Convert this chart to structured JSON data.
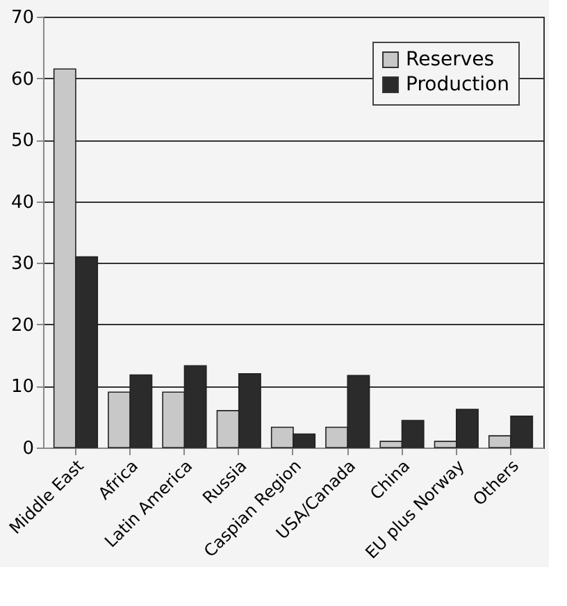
{
  "chart_data": {
    "type": "bar",
    "categories": [
      "Middle East",
      "Africa",
      "Latin America",
      "Russia",
      "Caspian Region",
      "USA/Canada",
      "China",
      "EU plus Norway",
      "Others"
    ],
    "series": [
      {
        "name": "Reserves",
        "color": "#c8c8c8",
        "values": [
          61.5,
          9,
          9,
          6,
          3.3,
          3.3,
          1,
          1,
          1.9
        ]
      },
      {
        "name": "Production",
        "color": "#2b2b2b",
        "values": [
          31,
          11.8,
          13.3,
          12,
          2.2,
          11.7,
          4.4,
          6.2,
          5.1
        ]
      }
    ],
    "ylim": [
      0,
      70
    ],
    "yticks": [
      0,
      10,
      20,
      30,
      40,
      50,
      60,
      70
    ],
    "grid": "y",
    "legend": "top right"
  }
}
